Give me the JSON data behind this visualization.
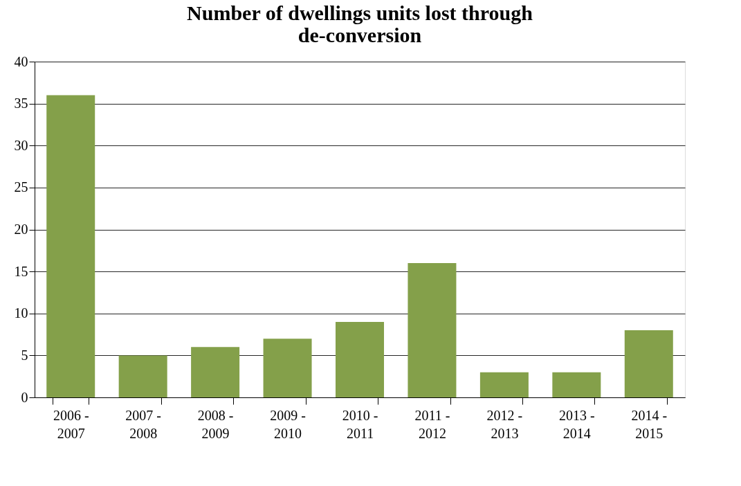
{
  "chart_data": {
    "type": "bar",
    "title": [
      "Number of dwellings units lost through",
      "de-conversion"
    ],
    "categories": [
      "2006 - 2007",
      "2007 - 2008",
      "2008 - 2009",
      "2009 - 2010",
      "2010 - 2011",
      "2011 - 2012",
      "2012 - 2013",
      "2013 - 2014",
      "2014 - 2015"
    ],
    "values": [
      36,
      5,
      6,
      7,
      9,
      16,
      3,
      3,
      8
    ],
    "color": "#84a04a",
    "ylim": [
      0,
      40
    ],
    "yticks": [
      0,
      5,
      10,
      15,
      20,
      25,
      30,
      35,
      40
    ],
    "grid": "y"
  }
}
